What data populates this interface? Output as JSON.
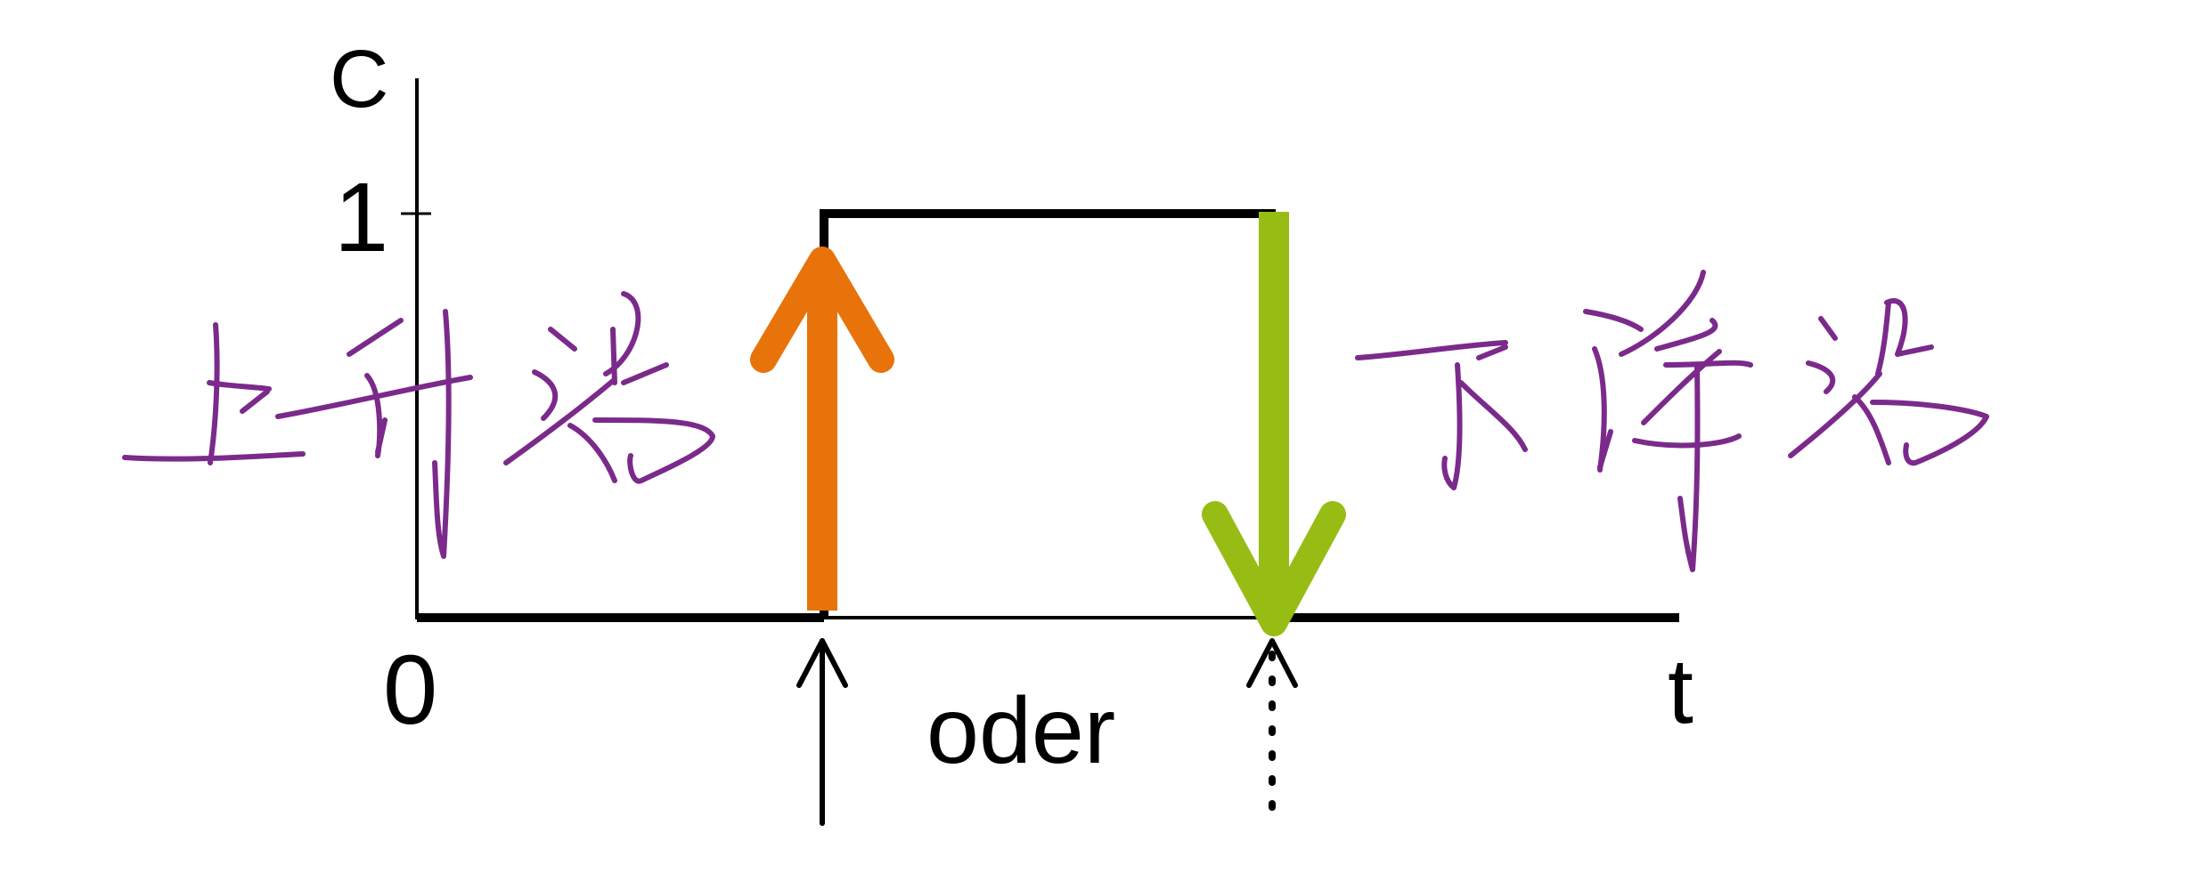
{
  "axis": {
    "y_label": "C",
    "y_tick": "1",
    "origin_label": "0",
    "x_label": "t"
  },
  "signal": {
    "low_value": 0,
    "high_value": 1
  },
  "conjunction_label": "oder",
  "annotations": {
    "rising_edge": "上升沿",
    "falling_edge": "下降沿"
  },
  "colors": {
    "axis": "#000000",
    "signal": "#000000",
    "rising_arrow": "#e8730a",
    "falling_arrow": "#97bd14",
    "handwriting": "#7b2a8b"
  },
  "icons": {
    "rising_marker": "up-arrow-icon",
    "falling_marker": "dashed-up-arrow-icon"
  }
}
